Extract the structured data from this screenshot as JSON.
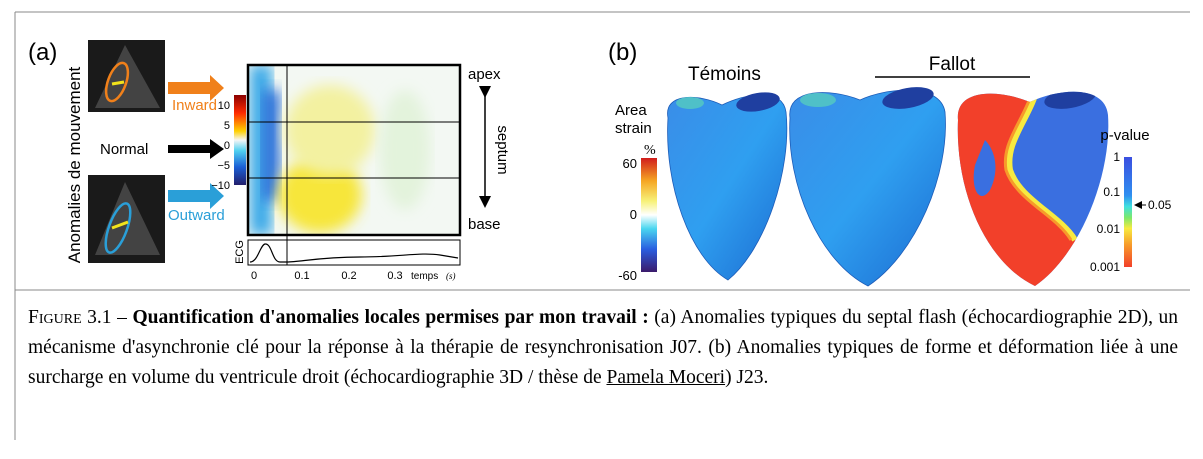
{
  "panel_a": {
    "label": "(a)",
    "y_axis_label": "Anomalies de mouvement",
    "arrows": [
      "Inward",
      "Normal",
      "Outward"
    ],
    "colorbar_ticks": [
      "10",
      "5",
      "0",
      "−5",
      "−10"
    ],
    "heatmap_labels": {
      "top": "apex",
      "middle": "septum",
      "bottom": "base"
    },
    "ecg_label": "ECG",
    "time_ticks": [
      "0",
      "0.1",
      "0.2",
      "0.3"
    ],
    "time_label": "temps",
    "time_unit": "(s)"
  },
  "panel_b": {
    "label": "(b)",
    "group_labels": [
      "Témoins",
      "Fallot"
    ],
    "colorbar_title": [
      "Area",
      "strain"
    ],
    "colorbar_unit": "%",
    "colorbar_ticks": [
      "60",
      "0",
      "-60"
    ],
    "pvalue_title": "p-value",
    "pvalue_ticks": [
      "1",
      "0.1",
      "0.01",
      "0.001"
    ],
    "pvalue_threshold": "0.05"
  },
  "caption": {
    "label": "Figure 3.1 –",
    "title": "Quantification d'anomalies locales permises par mon travail :",
    "body": "(a) Anomalies typiques du septal flash (échocardiographie 2D), un mécanisme d'asynchronie clé pour la réponse à la thérapie de resynchronisation J07. (b) Anomalies typiques de forme et déformation liée à une surcharge en volume du ventricule droit (échocardiographie 3D / thèse de",
    "link": "Pamela Moceri",
    "end": ") J23."
  }
}
